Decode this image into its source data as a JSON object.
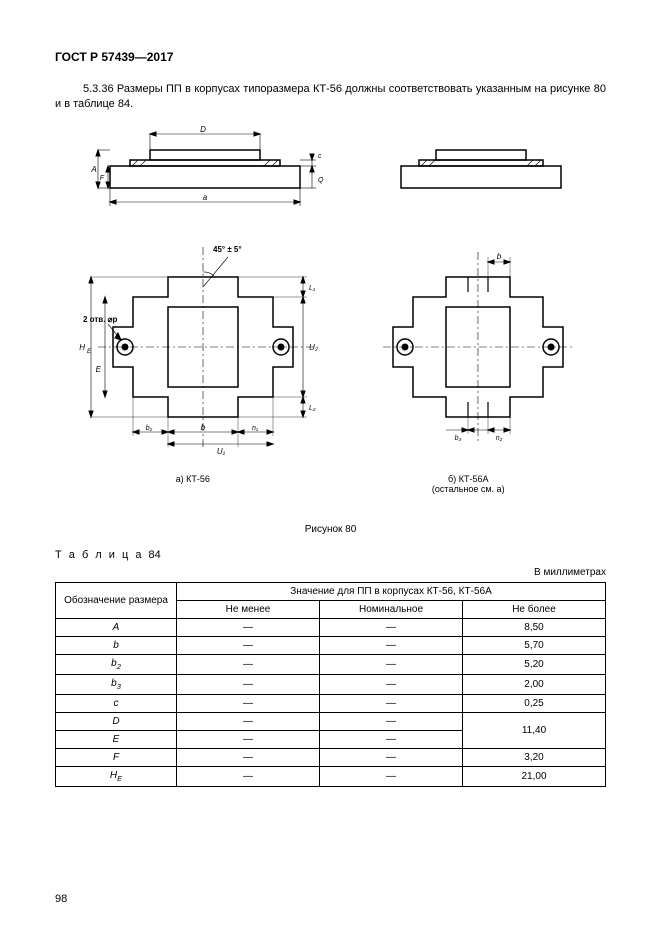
{
  "doc_header": "ГОСТ Р 57439—2017",
  "body_text": "5.3.36 Размеры ПП в корпусах типоразмера КТ-56 должны соответствовать указанным на рисунке 80 и в таблице 84.",
  "figure": {
    "caption_a": "а) КТ-56",
    "caption_b": "б) КТ-56А\n(остальное см. а)",
    "main_caption": "Рисунок 80",
    "angle_label": "45° ± 5°",
    "holes_label": "2 отв. ⌀p",
    "dim_labels": {
      "D": "D",
      "A": "A",
      "F": "F",
      "a": "a",
      "c": "c",
      "Q": "Q",
      "HE": "HE",
      "E": "E",
      "b": "b",
      "b2": "b2",
      "b3": "b3",
      "U1": "U1",
      "U2": "U2",
      "L1": "L1",
      "L2": "L2",
      "n1": "n1",
      "n2": "n2"
    },
    "stroke": "#000000",
    "hatch": "#000000",
    "linewidth_main": 1.5,
    "linewidth_thin": 0.6
  },
  "table": {
    "label_prefix": "Т а б л и ц а",
    "label_number": "84",
    "unit_text": "В миллиметрах",
    "header_col1": "Обозначение размера",
    "header_group": "Значение для ПП в корпусах КТ-56, КТ-56А",
    "header_sub1": "Не менее",
    "header_sub2": "Номинальное",
    "header_sub3": "Не более",
    "dash": "—",
    "rows": [
      {
        "sym": "A",
        "sub": "",
        "min": "—",
        "nom": "—",
        "max": "8,50"
      },
      {
        "sym": "b",
        "sub": "",
        "min": "—",
        "nom": "—",
        "max": "5,70"
      },
      {
        "sym": "b",
        "sub": "2",
        "min": "—",
        "nom": "—",
        "max": "5,20"
      },
      {
        "sym": "b",
        "sub": "3",
        "min": "—",
        "nom": "—",
        "max": "2,00"
      },
      {
        "sym": "c",
        "sub": "",
        "min": "—",
        "nom": "—",
        "max": "0,25"
      },
      {
        "sym": "D",
        "sub": "",
        "min": "—",
        "nom": "—",
        "max": "11,40",
        "rowspan_max": 2
      },
      {
        "sym": "E",
        "sub": "",
        "min": "—",
        "nom": "—",
        "max": null
      },
      {
        "sym": "F",
        "sub": "",
        "min": "—",
        "nom": "—",
        "max": "3,20"
      },
      {
        "sym": "H",
        "sub": "E",
        "min": "—",
        "nom": "—",
        "max": "21,00"
      }
    ]
  },
  "page_number": "98"
}
